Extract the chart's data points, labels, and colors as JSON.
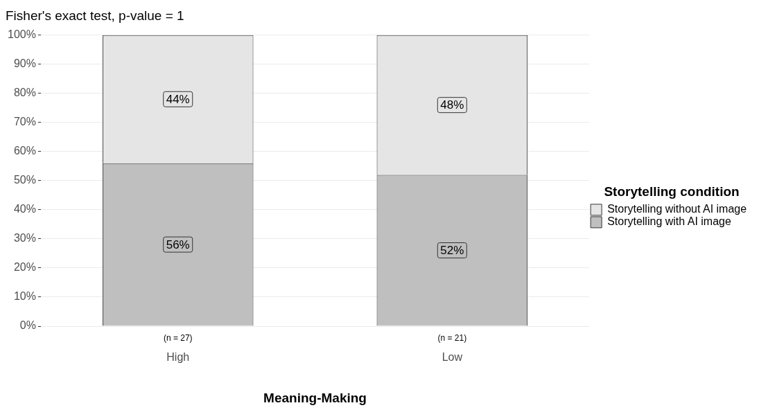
{
  "chart_data": {
    "type": "bar",
    "title": "Fisher's exact test, p-value = 1",
    "xlabel": "Meaning-Making",
    "legend_title": "Storytelling condition",
    "categories": [
      "High",
      "Low"
    ],
    "stacked": true,
    "series": [
      {
        "name": "Storytelling with AI image",
        "color": "#bfbfbf",
        "values": [
          56,
          52
        ],
        "value_labels": [
          "56%",
          "52%"
        ]
      },
      {
        "name": "Storytelling without AI image",
        "color": "#e5e5e5",
        "values": [
          44,
          48
        ],
        "value_labels": [
          "44%",
          "48%"
        ]
      }
    ],
    "ylim": [
      0,
      100
    ],
    "yticks": [
      {
        "value": 0,
        "label": "0%"
      },
      {
        "value": 10,
        "label": "10%"
      },
      {
        "value": 20,
        "label": "20%"
      },
      {
        "value": 30,
        "label": "30%"
      },
      {
        "value": 40,
        "label": "40%"
      },
      {
        "value": 50,
        "label": "50%"
      },
      {
        "value": 60,
        "label": "60%"
      },
      {
        "value": 70,
        "label": "70%"
      },
      {
        "value": 80,
        "label": "80%"
      },
      {
        "value": 90,
        "label": "90%"
      },
      {
        "value": 100,
        "label": "100%"
      }
    ],
    "annotations": [
      "(n = 27)",
      "(n = 21)"
    ],
    "grid": "y",
    "legend": "right"
  }
}
